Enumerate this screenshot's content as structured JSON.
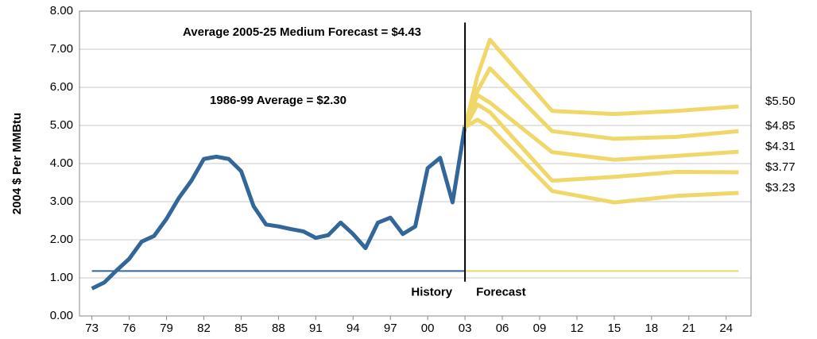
{
  "chart_data": {
    "type": "line",
    "ylabel": "2004 $ Per MMBtu",
    "annotations": [
      {
        "text": "Average 2005-25 Medium Forecast = $4.43"
      },
      {
        "text": "1986-99 Average = $2.30"
      }
    ],
    "xlim": [
      1972,
      2026
    ],
    "xticks": [
      {
        "value": 1973,
        "label": "73"
      },
      {
        "value": 1976,
        "label": "76"
      },
      {
        "value": 1979,
        "label": "79"
      },
      {
        "value": 1982,
        "label": "82"
      },
      {
        "value": 1985,
        "label": "85"
      },
      {
        "value": 1988,
        "label": "88"
      },
      {
        "value": 1991,
        "label": "91"
      },
      {
        "value": 1994,
        "label": "94"
      },
      {
        "value": 1997,
        "label": "97"
      },
      {
        "value": 2000,
        "label": "00"
      },
      {
        "value": 2003,
        "label": "03"
      },
      {
        "value": 2006,
        "label": "06"
      },
      {
        "value": 2009,
        "label": "09"
      },
      {
        "value": 2012,
        "label": "12"
      },
      {
        "value": 2015,
        "label": "15"
      },
      {
        "value": 2018,
        "label": "18"
      },
      {
        "value": 2021,
        "label": "21"
      },
      {
        "value": 2024,
        "label": "24"
      }
    ],
    "ylim": [
      0,
      8
    ],
    "yticks": [
      {
        "value": 0,
        "label": "0.00"
      },
      {
        "value": 1,
        "label": "1.00"
      },
      {
        "value": 2,
        "label": "2.00"
      },
      {
        "value": 3,
        "label": "3.00"
      },
      {
        "value": 4,
        "label": "4.00"
      },
      {
        "value": 5,
        "label": "5.00"
      },
      {
        "value": 6,
        "label": "6.00"
      },
      {
        "value": 7,
        "label": "7.00"
      },
      {
        "value": 8,
        "label": "8.00"
      }
    ],
    "grid": true,
    "series": [
      {
        "color": "#336699",
        "x": [
          1973,
          1974,
          1975,
          1976,
          1977,
          1978,
          1979,
          1980,
          1981,
          1982,
          1983,
          1984,
          1985,
          1986,
          1987,
          1988,
          1989,
          1990,
          1991,
          1992,
          1993,
          1994,
          1995,
          1996,
          1997,
          1998,
          1999,
          2000,
          2001,
          2002,
          2003
        ],
        "values": [
          0.72,
          0.88,
          1.2,
          1.5,
          1.95,
          2.1,
          2.55,
          3.1,
          3.55,
          4.12,
          4.18,
          4.12,
          3.8,
          2.88,
          2.4,
          2.35,
          2.28,
          2.22,
          2.05,
          2.12,
          2.45,
          2.15,
          1.78,
          2.45,
          2.58,
          2.15,
          2.35,
          3.88,
          4.15,
          2.98,
          5.0
        ]
      },
      {
        "color": "#f0d76a",
        "x": [
          2003,
          2004,
          2005,
          2010,
          2015,
          2020,
          2025
        ],
        "values": [
          4.95,
          6.3,
          7.25,
          5.38,
          5.3,
          5.38,
          5.5
        ],
        "end_label": "$5.50"
      },
      {
        "color": "#f0d76a",
        "x": [
          2003,
          2004,
          2005,
          2010,
          2015,
          2020,
          2025
        ],
        "values": [
          4.95,
          5.9,
          6.5,
          4.85,
          4.65,
          4.7,
          4.85
        ],
        "end_label": "$4.85"
      },
      {
        "color": "#f0d76a",
        "x": [
          2003,
          2004,
          2005,
          2010,
          2015,
          2020,
          2025
        ],
        "values": [
          4.95,
          5.8,
          5.6,
          4.3,
          4.1,
          4.2,
          4.31
        ],
        "end_label": "$4.31"
      },
      {
        "color": "#f0d76a",
        "x": [
          2003,
          2004,
          2005,
          2010,
          2015,
          2020,
          2025
        ],
        "values": [
          4.95,
          5.55,
          5.35,
          3.55,
          3.65,
          3.78,
          3.77
        ],
        "end_label": "$3.77"
      },
      {
        "color": "#f0d76a",
        "x": [
          2003,
          2004,
          2005,
          2010,
          2015,
          2020,
          2025
        ],
        "values": [
          4.95,
          5.15,
          4.95,
          3.28,
          2.98,
          3.15,
          3.23
        ],
        "end_label": "$3.23"
      }
    ],
    "periods": [
      {
        "label": "History",
        "start": 1973,
        "end": 2003,
        "y": 1.18,
        "color": "#336699"
      },
      {
        "label": "Forecast",
        "start": 2003,
        "end": 2025,
        "y": 1.18,
        "color": "#f0d76a"
      }
    ],
    "divider": {
      "x": 2003,
      "from": 0.9,
      "to": 7.7
    }
  }
}
